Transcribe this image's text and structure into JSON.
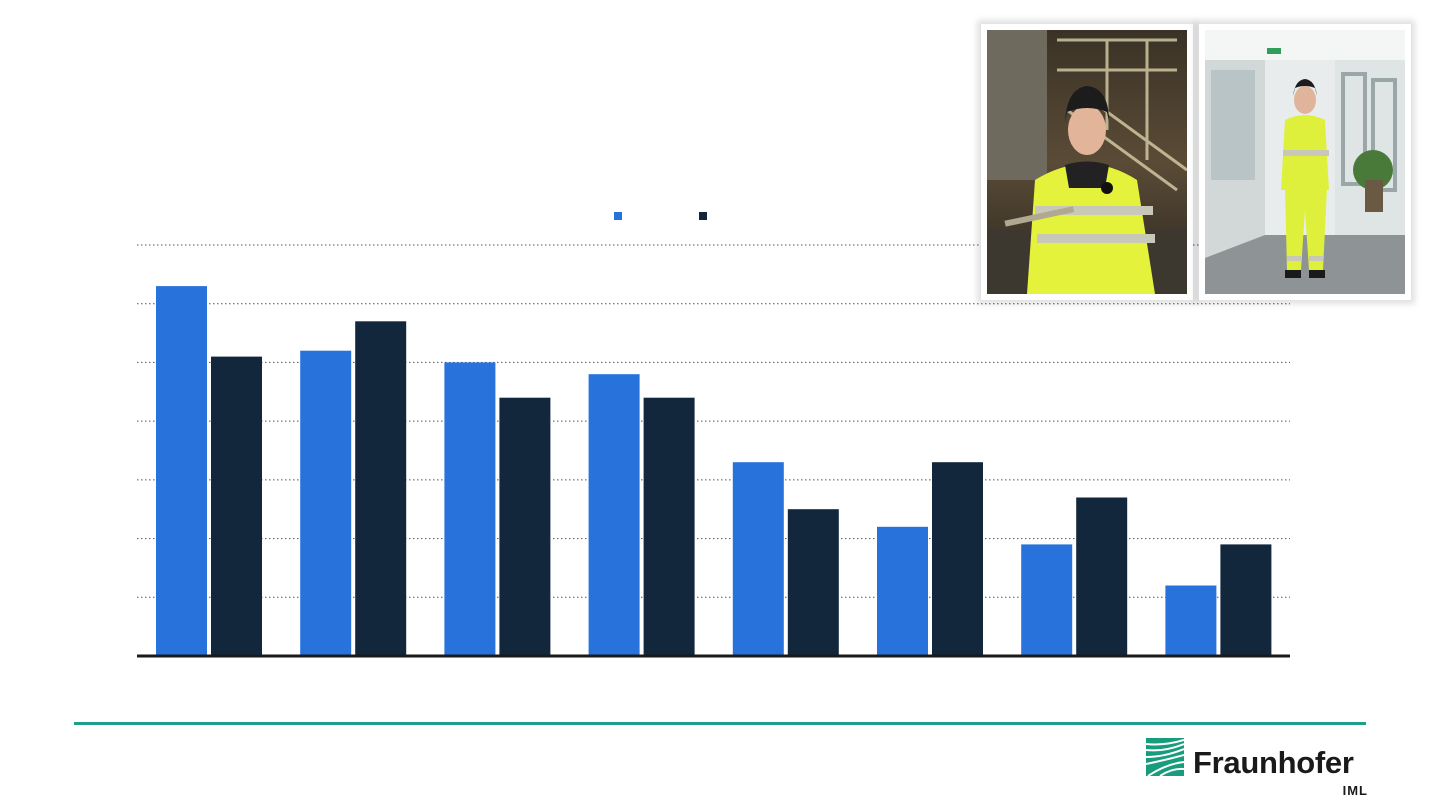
{
  "chart_data": {
    "type": "bar",
    "title": "",
    "xlabel": "",
    "ylabel": "",
    "categories": [
      "",
      "",
      "",
      "",
      "",
      "",
      "",
      ""
    ],
    "series": [
      {
        "color": "#2872dc",
        "values": [
          63,
          52,
          50,
          48,
          33,
          22,
          19,
          12
        ]
      },
      {
        "color": "#12263c",
        "values": [
          51,
          57,
          44,
          44,
          25,
          33,
          27,
          19
        ]
      }
    ],
    "ylim": [
      0,
      70
    ],
    "gridlines": [
      10,
      20,
      30,
      40,
      50,
      60,
      70
    ],
    "grid": true,
    "grid_style": "dotted",
    "legend_placement": "top-center"
  },
  "photos": [
    {
      "icon": "worker-airport-night-photo"
    },
    {
      "icon": "worker-office-corridor-photo"
    }
  ],
  "footer": {
    "divider_color": "#1f9e8a",
    "logo": {
      "name": "Fraunhofer",
      "sub": "IML",
      "icon": "fraunhofer-logo-icon",
      "color": "#179c7d"
    }
  }
}
